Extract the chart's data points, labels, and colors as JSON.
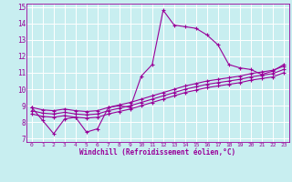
{
  "xlabel": "Windchill (Refroidissement éolien,°C)",
  "background_color": "#c8eef0",
  "grid_color": "#ffffff",
  "line_color": "#990099",
  "xlim": [
    -0.5,
    23.5
  ],
  "ylim": [
    6.8,
    15.2
  ],
  "xticks": [
    0,
    1,
    2,
    3,
    4,
    5,
    6,
    7,
    8,
    9,
    10,
    11,
    12,
    13,
    14,
    15,
    16,
    17,
    18,
    19,
    20,
    21,
    22,
    23
  ],
  "yticks": [
    7,
    8,
    9,
    10,
    11,
    12,
    13,
    14,
    15
  ],
  "curve1_x": [
    0,
    1,
    2,
    3,
    4,
    5,
    6,
    7,
    8,
    9,
    10,
    11,
    12,
    13,
    14,
    15,
    16,
    17,
    18,
    19,
    20,
    21,
    22,
    23
  ],
  "curve1_y": [
    8.9,
    8.1,
    7.3,
    8.2,
    8.3,
    7.4,
    7.6,
    8.9,
    9.0,
    8.9,
    10.8,
    11.5,
    14.8,
    13.9,
    13.8,
    13.7,
    13.3,
    12.7,
    11.5,
    11.3,
    11.2,
    10.9,
    11.1,
    11.5
  ],
  "curve2_x": [
    0,
    1,
    2,
    3,
    4,
    5,
    6,
    7,
    8,
    9,
    10,
    11,
    12,
    13,
    14,
    15,
    16,
    17,
    18,
    19,
    20,
    21,
    22,
    23
  ],
  "curve2_y": [
    8.9,
    8.75,
    8.7,
    8.8,
    8.7,
    8.65,
    8.7,
    8.9,
    9.05,
    9.2,
    9.4,
    9.6,
    9.8,
    10.0,
    10.2,
    10.35,
    10.5,
    10.6,
    10.7,
    10.8,
    10.95,
    11.05,
    11.15,
    11.4
  ],
  "curve3_x": [
    0,
    1,
    2,
    3,
    4,
    5,
    6,
    7,
    8,
    9,
    10,
    11,
    12,
    13,
    14,
    15,
    16,
    17,
    18,
    19,
    20,
    21,
    22,
    23
  ],
  "curve3_y": [
    8.7,
    8.55,
    8.5,
    8.6,
    8.5,
    8.45,
    8.5,
    8.7,
    8.85,
    9.0,
    9.2,
    9.4,
    9.6,
    9.8,
    10.0,
    10.15,
    10.3,
    10.4,
    10.5,
    10.6,
    10.75,
    10.85,
    10.95,
    11.2
  ],
  "curve4_x": [
    0,
    1,
    2,
    3,
    4,
    5,
    6,
    7,
    8,
    9,
    10,
    11,
    12,
    13,
    14,
    15,
    16,
    17,
    18,
    19,
    20,
    21,
    22,
    23
  ],
  "curve4_y": [
    8.5,
    8.35,
    8.3,
    8.4,
    8.3,
    8.25,
    8.3,
    8.5,
    8.65,
    8.8,
    9.0,
    9.2,
    9.4,
    9.6,
    9.8,
    9.95,
    10.1,
    10.2,
    10.3,
    10.4,
    10.55,
    10.65,
    10.75,
    11.0
  ]
}
